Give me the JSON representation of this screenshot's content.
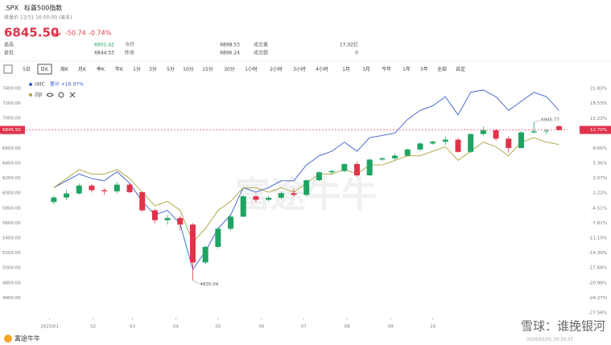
{
  "header": {
    "symbol": ".SPX",
    "name": "标普500指数",
    "status": "收盘价 12/31 16:00:00 (美东)",
    "price": "6845.50",
    "change": "-50.74",
    "change_pct": "-0.74%"
  },
  "stats": [
    {
      "label": "最高",
      "value": "6901.42"
    },
    {
      "label": "今开",
      "value": "6898.53"
    },
    {
      "label": "成交量",
      "value": "17.02亿"
    },
    {
      "label": "最低",
      "value": "6844.53"
    },
    {
      "label": "昨收",
      "value": "6896.24"
    },
    {
      "label": "成交额",
      "value": "0"
    }
  ],
  "tabs": [
    "5日",
    "日K",
    "周K",
    "月K",
    "季K",
    "年K",
    "1分",
    "3分",
    "5分",
    "10分",
    "15分",
    "30分",
    "1小时",
    "2小时",
    "3小时",
    "4小时",
    "1月",
    "3月",
    "今年",
    "1年",
    "5年",
    "全部",
    "自定"
  ],
  "active_tab": 1,
  "chart_data": {
    "type": "candlestick",
    "x": [
      3,
      12,
      21,
      30,
      39,
      48,
      57,
      66,
      75,
      84,
      93,
      102,
      111,
      120,
      129,
      138,
      147,
      156,
      165,
      174,
      183,
      192,
      201,
      210,
      219,
      228,
      237,
      246,
      255,
      264,
      273,
      282,
      291,
      300,
      309,
      318,
      327,
      336,
      345,
      354,
      363
    ],
    "open": [
      5882,
      5942,
      5996,
      6101,
      6040,
      6025,
      6114,
      6013,
      5770,
      5639,
      5667,
      5580,
      5074,
      5282,
      5525,
      5686,
      5958,
      5911,
      5939,
      6000,
      5977,
      6173,
      6279,
      6296,
      6389,
      6238,
      6449,
      6466,
      6502,
      6584,
      6664,
      6688,
      6715,
      6552,
      6791,
      6840,
      6729,
      6603,
      6812,
      6827,
      6896
    ],
    "high": [
      5965,
      6040,
      6128,
      6120,
      6065,
      6147,
      6127,
      6025,
      5790,
      5710,
      5700,
      5600,
      5300,
      5540,
      5700,
      5970,
      5980,
      5960,
      6020,
      6060,
      6180,
      6290,
      6310,
      6400,
      6420,
      6460,
      6480,
      6530,
      6600,
      6680,
      6700,
      6760,
      6740,
      6800,
      6890,
      6860,
      6760,
      6830,
      6945.77,
      6860,
      6905
    ],
    "low": [
      5850,
      5910,
      5980,
      6010,
      5980,
      6000,
      6000,
      5750,
      5600,
      5580,
      5500,
      4835.04,
      5050,
      5260,
      5500,
      5680,
      5880,
      5890,
      5920,
      5950,
      5960,
      6160,
      6250,
      6280,
      6220,
      6230,
      6430,
      6440,
      6490,
      6570,
      6650,
      6650,
      6540,
      6540,
      6770,
      6700,
      6540,
      6600,
      6800,
      6790,
      6840
    ],
    "close": [
      5942,
      5996,
      6101,
      6040,
      6025,
      6114,
      6013,
      5770,
      5639,
      5667,
      5580,
      5074,
      5282,
      5525,
      5686,
      5958,
      5911,
      5939,
      6000,
      5977,
      6173,
      6279,
      6296,
      6389,
      6238,
      6449,
      6466,
      6502,
      6584,
      6664,
      6688,
      6715,
      6552,
      6791,
      6840,
      6729,
      6603,
      6812,
      6827,
      6834,
      6845.5
    ],
    "up_color": "#1fa463",
    "down_color": "#e0334a",
    "series": [
      {
        "name": ".IXIC",
        "summary": "累计 +16.97%",
        "color": "#3a5fc8",
        "axis": "y2",
        "values": [
          0,
          1.5,
          3,
          2,
          1.5,
          3.5,
          1,
          -3,
          -6,
          -5,
          -8,
          -18,
          -14,
          -9,
          -6,
          0,
          -1,
          0,
          1.5,
          1.5,
          5,
          7,
          8,
          10,
          8,
          11,
          11.5,
          12,
          15,
          17,
          18,
          20,
          16,
          21,
          21.5,
          20,
          17,
          19,
          21,
          20,
          16.97
        ]
      },
      {
        "name": ".DJI",
        "color": "#a9a23c",
        "axis": "y2",
        "values": [
          0,
          2,
          4,
          3,
          3,
          4,
          2,
          -1,
          -4,
          -3,
          -5,
          -12,
          -9,
          -5,
          -3,
          0,
          0,
          -1,
          0,
          -1,
          1,
          3,
          3,
          4,
          3,
          5,
          5,
          6,
          7,
          7,
          8,
          9,
          6,
          8,
          10,
          9,
          7,
          10,
          11,
          10,
          9.5
        ]
      }
    ],
    "xlim": [
      -17,
      369
    ],
    "xticks": [
      {
        "value": 0,
        "label": "2025/01"
      },
      {
        "value": 31,
        "label": "02"
      },
      {
        "value": 59,
        "label": "03"
      },
      {
        "value": 90,
        "label": "04"
      },
      {
        "value": 120,
        "label": "05"
      },
      {
        "value": 151,
        "label": "06"
      },
      {
        "value": 181,
        "label": "07"
      },
      {
        "value": 212,
        "label": "08"
      },
      {
        "value": 243,
        "label": "09"
      },
      {
        "value": 273,
        "label": "10"
      }
    ],
    "ylim": [
      4400,
      7400
    ],
    "yticks": [
      {
        "value": 7400,
        "label": "7400.00"
      },
      {
        "value": 7200,
        "label": "7200.00"
      },
      {
        "value": 7000,
        "label": "7000.00"
      },
      {
        "value": 6800,
        "label": "6800.00"
      },
      {
        "value": 6600,
        "label": "6600.00"
      },
      {
        "value": 6400,
        "label": "6400.00"
      },
      {
        "value": 6200,
        "label": "6200.00"
      },
      {
        "value": 6000,
        "label": "6000.00"
      },
      {
        "value": 5800,
        "label": "5800.00"
      },
      {
        "value": 5600,
        "label": "5600.00"
      },
      {
        "value": 5400,
        "label": "5400.00"
      },
      {
        "value": 5200,
        "label": "5200.00"
      },
      {
        "value": 5000,
        "label": "5000.00"
      },
      {
        "value": 4800,
        "label": "4800.00"
      },
      {
        "value": 4600,
        "label": "4600.00"
      }
    ],
    "y2lim": [
      -27.56,
      21.83
    ],
    "y2ticks": [
      {
        "value": 21.83,
        "label": "21.83%"
      },
      {
        "value": 18.53,
        "label": "18.53%"
      },
      {
        "value": 15.23,
        "label": "15.23%"
      },
      {
        "value": 8.66,
        "label": "8.66%"
      },
      {
        "value": 5.36,
        "label": "5.36%"
      },
      {
        "value": 2.07,
        "label": "2.07%"
      },
      {
        "value": -1.22,
        "label": "-1.22%"
      },
      {
        "value": -4.51,
        "label": "-4.51%"
      },
      {
        "value": -7.81,
        "label": "-7.81%"
      },
      {
        "value": -11.1,
        "label": "-11.10%"
      },
      {
        "value": -14.39,
        "label": "-14.39%"
      },
      {
        "value": -17.68,
        "label": "-17.68%"
      },
      {
        "value": -20.98,
        "label": "-20.98%"
      },
      {
        "value": -24.27,
        "label": "-24.27%"
      },
      {
        "value": -27.56,
        "label": "-27.56%"
      }
    ],
    "grid": false,
    "price_line": {
      "value": 6845.5,
      "label": "6845.50",
      "y2_value": 12.7,
      "y2_label": "12.70%"
    },
    "annotations": [
      {
        "x": 345,
        "y": 6945.77,
        "label": "6945.77"
      },
      {
        "x": 102,
        "y": 4835.04,
        "label": "4835.04"
      }
    ]
  },
  "footer": {
    "logo": "富途牛牛",
    "timestamp": "2026/01/01 10:33:37",
    "watermark": "雪球：谁挽银河",
    "center_watermark": "富途牛牛"
  }
}
